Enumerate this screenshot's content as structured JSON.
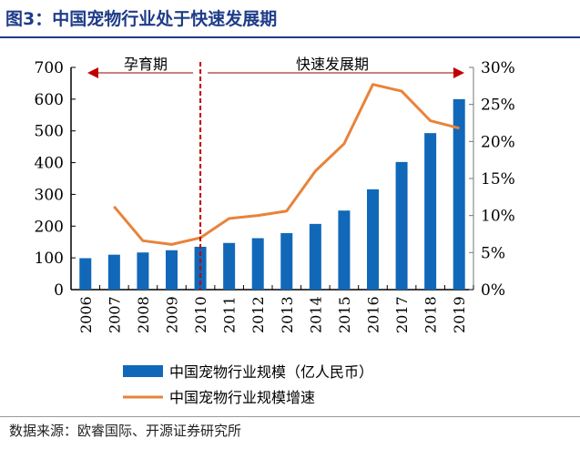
{
  "title": "图3：中国宠物行业处于快速发展期",
  "source": "数据来源：欧睿国际、开源证券研究所",
  "chart_data": {
    "type": "bar+line",
    "categories": [
      "2006",
      "2007",
      "2008",
      "2009",
      "2010",
      "2011",
      "2012",
      "2013",
      "2014",
      "2015",
      "2016",
      "2017",
      "2018",
      "2019"
    ],
    "series": [
      {
        "name": "中国宠物行业规模（亿人民币）",
        "type": "bar",
        "axis": "left",
        "color": "#1168b8",
        "values": [
          99,
          110,
          117,
          124,
          135,
          147,
          162,
          178,
          207,
          249,
          316,
          402,
          493,
          600
        ]
      },
      {
        "name": "中国宠物行业规模增速",
        "type": "line",
        "axis": "right",
        "color": "#e8833a",
        "values": [
          null,
          11.2,
          6.6,
          6.1,
          7.0,
          9.6,
          10.0,
          10.6,
          16.0,
          19.7,
          27.7,
          26.8,
          22.8,
          21.8
        ]
      }
    ],
    "ylim_left": [
      0,
      700
    ],
    "yticks_left": [
      "0",
      "100",
      "200",
      "300",
      "400",
      "500",
      "600",
      "700"
    ],
    "ylim_right": [
      0,
      30
    ],
    "yticks_right": [
      "0%",
      "5%",
      "10%",
      "15%",
      "20%",
      "25%",
      "30%"
    ],
    "annotations": {
      "phase1": "孕育期",
      "phase2": "快速发展期",
      "divider_year": "2010",
      "divider_color": "#c00000"
    },
    "legend": "bottom"
  }
}
